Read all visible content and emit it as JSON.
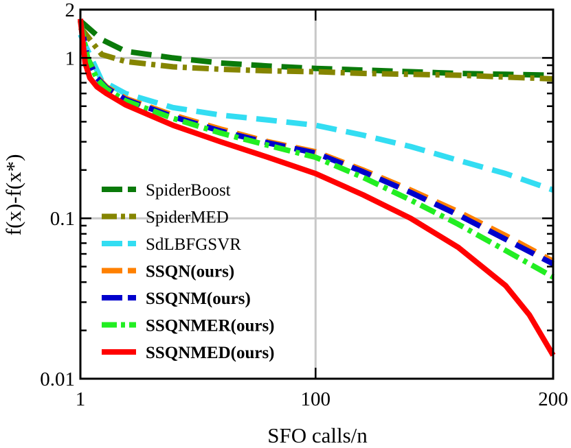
{
  "chart_data": {
    "type": "line",
    "title": "",
    "xlabel": "SFO calls/n",
    "ylabel": "f(x)-f(x*)",
    "xlim": [
      1,
      200
    ],
    "ylim": [
      0.01,
      2
    ],
    "yscale": "log",
    "grid": true,
    "x_ticks": [
      {
        "value": 1,
        "label": "1"
      },
      {
        "value": 100,
        "label": "100"
      },
      {
        "value": 200,
        "label": "200"
      }
    ],
    "y_ticks": [
      {
        "value": 0.01,
        "label": "0.01"
      },
      {
        "value": 0.1,
        "label": "0.1"
      },
      {
        "value": 1,
        "label": "1"
      },
      {
        "value": 2,
        "label": "2"
      }
    ],
    "legend_position": "bottom-left",
    "series": [
      {
        "name": "SpiderBoost",
        "color": "#0a7a0a",
        "dash": "long",
        "bold": false,
        "x": [
          1,
          10,
          20,
          40,
          60,
          80,
          100,
          120,
          140,
          160,
          180,
          200
        ],
        "y": [
          1.7,
          1.3,
          1.1,
          1.0,
          0.93,
          0.89,
          0.86,
          0.84,
          0.82,
          0.8,
          0.79,
          0.78
        ]
      },
      {
        "name": "SpiderMED",
        "color": "#858500",
        "dash": "dashdot",
        "bold": false,
        "x": [
          1,
          10,
          20,
          40,
          60,
          80,
          100,
          120,
          140,
          160,
          180,
          200
        ],
        "y": [
          1.55,
          1.05,
          0.95,
          0.88,
          0.85,
          0.83,
          0.82,
          0.8,
          0.79,
          0.78,
          0.76,
          0.74
        ]
      },
      {
        "name": "SdLBFGSVR",
        "color": "#33ddf2",
        "dash": "long",
        "bold": false,
        "x": [
          1,
          10,
          20,
          40,
          60,
          80,
          100,
          120,
          140,
          160,
          180,
          200
        ],
        "y": [
          1.4,
          0.72,
          0.6,
          0.49,
          0.44,
          0.41,
          0.38,
          0.33,
          0.28,
          0.23,
          0.19,
          0.15
        ]
      },
      {
        "name": "SSQN(ours)",
        "color": "#ff8000",
        "dash": "long",
        "bold": true,
        "x": [
          1,
          4,
          8,
          12,
          20,
          40,
          60,
          80,
          100,
          120,
          140,
          160,
          180,
          200
        ],
        "y": [
          1.7,
          1.0,
          0.76,
          0.66,
          0.56,
          0.44,
          0.36,
          0.3,
          0.26,
          0.2,
          0.15,
          0.11,
          0.078,
          0.054
        ]
      },
      {
        "name": "SSQNM(ours)",
        "color": "#0000cc",
        "dash": "long",
        "bold": true,
        "x": [
          1,
          4,
          8,
          12,
          20,
          40,
          60,
          80,
          100,
          120,
          140,
          160,
          180,
          200
        ],
        "y": [
          1.7,
          1.0,
          0.75,
          0.65,
          0.55,
          0.43,
          0.35,
          0.295,
          0.255,
          0.195,
          0.145,
          0.105,
          0.074,
          0.052
        ]
      },
      {
        "name": "SSQNMER(ours)",
        "color": "#22ee22",
        "dash": "dashdot",
        "bold": true,
        "x": [
          1,
          4,
          8,
          12,
          20,
          40,
          60,
          80,
          100,
          120,
          140,
          160,
          180,
          200
        ],
        "y": [
          1.7,
          1.0,
          0.74,
          0.64,
          0.54,
          0.42,
          0.34,
          0.285,
          0.24,
          0.18,
          0.13,
          0.092,
          0.063,
          0.043
        ]
      },
      {
        "name": "SSQNMED(ours)",
        "color": "#ff0000",
        "dash": "solid",
        "bold": true,
        "x": [
          1,
          3,
          5,
          8,
          12,
          20,
          40,
          60,
          80,
          100,
          120,
          140,
          160,
          180,
          190,
          200
        ],
        "y": [
          1.75,
          0.93,
          0.75,
          0.66,
          0.6,
          0.51,
          0.38,
          0.3,
          0.24,
          0.19,
          0.14,
          0.1,
          0.066,
          0.038,
          0.025,
          0.014
        ]
      }
    ]
  }
}
